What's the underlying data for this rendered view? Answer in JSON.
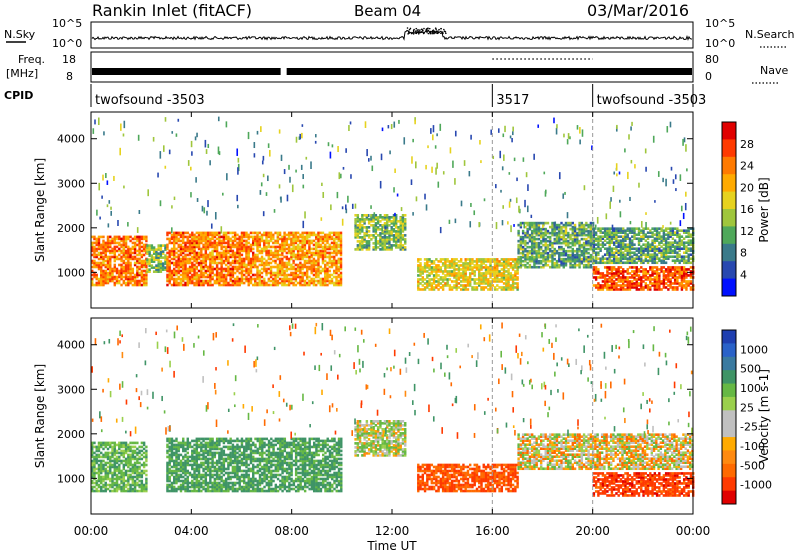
{
  "header": {
    "station": "Rankin Inlet (fitACF)",
    "beam": "Beam 04",
    "date": "03/Mar/2016"
  },
  "left_labels": {
    "nsky": "N.Sky",
    "freq_top": "Freq.",
    "freq_unit": "[MHz]",
    "cpid": "CPID"
  },
  "right_labels": {
    "nsearch": "N.Search",
    "nave": "Nave"
  },
  "noise_panel": {
    "left_ticks": [
      "10^5",
      "10^0"
    ],
    "right_ticks": [
      "10^5",
      "10^0"
    ]
  },
  "freq_panel": {
    "left_ticks": [
      "18",
      "8"
    ],
    "right_ticks": [
      "80",
      "0"
    ]
  },
  "cpid_panel": {
    "segments": [
      {
        "label": "twofsound  -3503",
        "start_hour": 0,
        "end_hour": 16
      },
      {
        "label": "3517",
        "start_hour": 16,
        "end_hour": 20
      },
      {
        "label": "twofsound  -3503",
        "start_hour": 20,
        "end_hour": 24
      }
    ]
  },
  "power_colorbar": {
    "title": "Power [dB]",
    "ticks": [
      "28",
      "24",
      "20",
      "16",
      "12",
      "8",
      "4"
    ],
    "colors": [
      "#e00000",
      "#ff3a00",
      "#ff7a00",
      "#ffaa00",
      "#e6d21e",
      "#9fc63c",
      "#4fa85a",
      "#3a7a8a",
      "#2848b0",
      "#0010ff"
    ]
  },
  "velocity_colorbar": {
    "title": "Velocity [m s-1]",
    "ticks": [
      "1000",
      "500",
      "100",
      "25",
      "-25",
      "-100",
      "-500",
      "-1000"
    ],
    "colors": [
      "#1f3fb0",
      "#2a62c8",
      "#3a7aa0",
      "#3f9466",
      "#66b844",
      "#9ad04c",
      "#c0c0c0",
      "#c0c0c0",
      "#ffaa00",
      "#ff8a10",
      "#ff6a00",
      "#ff3a00",
      "#e00000"
    ]
  },
  "x_axis": {
    "label": "Time UT",
    "ticks": [
      "00:00",
      "04:00",
      "08:00",
      "12:00",
      "16:00",
      "20:00",
      "00:00"
    ]
  },
  "chart_data": [
    {
      "type": "heatmap",
      "title": "Power",
      "ylabel": "Slant Range [km]",
      "xlabel": "",
      "y_ticks": [
        1000,
        2000,
        3000,
        4000
      ],
      "ylim": [
        200,
        4600
      ],
      "xlim": [
        0,
        24
      ],
      "bands": [
        {
          "start_hour": 0.0,
          "end_hour": 2.2,
          "range_min": 700,
          "range_max": 1800,
          "power_db": 24
        },
        {
          "start_hour": 2.2,
          "end_hour": 3.0,
          "range_min": 1000,
          "range_max": 1600,
          "power_db": 14
        },
        {
          "start_hour": 3.0,
          "end_hour": 6.5,
          "range_min": 700,
          "range_max": 1900,
          "power_db": 24
        },
        {
          "start_hour": 6.5,
          "end_hour": 10.0,
          "range_min": 700,
          "range_max": 1900,
          "power_db": 22
        },
        {
          "start_hour": 10.5,
          "end_hour": 12.5,
          "range_min": 1500,
          "range_max": 2300,
          "power_db": 14
        },
        {
          "start_hour": 13.0,
          "end_hour": 17.0,
          "range_min": 600,
          "range_max": 1300,
          "power_db": 18
        },
        {
          "start_hour": 17.0,
          "end_hour": 20.0,
          "range_min": 1100,
          "range_max": 2100,
          "power_db": 12
        },
        {
          "start_hour": 20.0,
          "end_hour": 24.0,
          "range_min": 600,
          "range_max": 1100,
          "power_db": 26
        },
        {
          "start_hour": 20.0,
          "end_hour": 24.0,
          "range_min": 1200,
          "range_max": 2000,
          "power_db": 12
        }
      ]
    },
    {
      "type": "heatmap",
      "title": "Velocity",
      "ylabel": "Slant Range [km]",
      "xlabel": "Time UT",
      "y_ticks": [
        1000,
        2000,
        3000,
        4000
      ],
      "ylim": [
        200,
        4600
      ],
      "xlim": [
        0,
        24
      ],
      "bands": [
        {
          "start_hour": 0.0,
          "end_hour": 2.2,
          "range_min": 700,
          "range_max": 1800,
          "velocity_ms": 200
        },
        {
          "start_hour": 3.0,
          "end_hour": 10.0,
          "range_min": 700,
          "range_max": 1900,
          "velocity_ms": 300
        },
        {
          "start_hour": 10.5,
          "end_hour": 12.5,
          "range_min": 1500,
          "range_max": 2300,
          "velocity_ms": 50
        },
        {
          "start_hour": 13.0,
          "end_hour": 17.0,
          "range_min": 700,
          "range_max": 1300,
          "velocity_ms": -300
        },
        {
          "start_hour": 17.0,
          "end_hour": 24.0,
          "range_min": 1200,
          "range_max": 2000,
          "velocity_ms": 0
        },
        {
          "start_hour": 20.0,
          "end_hour": 24.0,
          "range_min": 600,
          "range_max": 1100,
          "velocity_ms": -400
        }
      ]
    }
  ]
}
